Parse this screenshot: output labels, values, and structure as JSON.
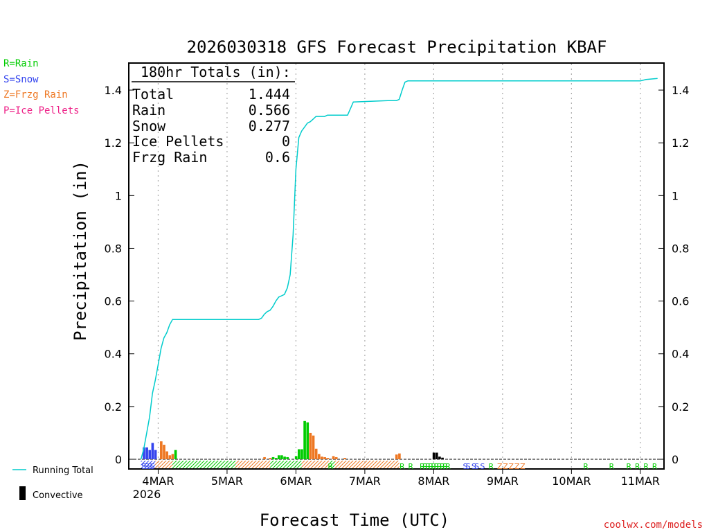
{
  "chart_data": {
    "type": "bar+line",
    "title": "2026030318 GFS Forecast Precipitation KBAF",
    "xlabel": "Forecast Time (UTC)",
    "ylabel": "Precipitation (in)",
    "ylim": [
      0,
      1.5
    ],
    "xlim_hours": [
      -4,
      182
    ],
    "yticks": [
      0,
      0.2,
      0.4,
      0.6,
      0.8,
      1,
      1.2,
      1.4
    ],
    "ytick_labels": [
      "0",
      "0.2",
      "0.4",
      "0.6",
      "0.8",
      "1",
      "1.2",
      "1.4"
    ],
    "xticks": [
      {
        "hour": 6,
        "label": "4MAR"
      },
      {
        "hour": 30,
        "label": "5MAR"
      },
      {
        "hour": 54,
        "label": "6MAR"
      },
      {
        "hour": 78,
        "label": "7MAR"
      },
      {
        "hour": 102,
        "label": "8MAR"
      },
      {
        "hour": 126,
        "label": "9MAR"
      },
      {
        "hour": 150,
        "label": "10MAR"
      },
      {
        "hour": 174,
        "label": "11MAR"
      }
    ],
    "first_tick_year": "2026",
    "legend": [
      {
        "label": "R=Rain",
        "color": "#00cc00"
      },
      {
        "label": "S=Snow",
        "color": "#3344ee"
      },
      {
        "label": "Z=Frzg Rain",
        "color": "#ee7722"
      },
      {
        "label": "P=Ice Pellets",
        "color": "#ee2288"
      }
    ],
    "line_legend": {
      "label": "Running Total",
      "color": "#00cccc"
    },
    "convective_legend": {
      "label": "Convective",
      "color": "#000000"
    },
    "totals_box": {
      "heading": "180hr Totals (in):",
      "rows": [
        {
          "label": "Total",
          "value": "1.444"
        },
        {
          "label": "Rain",
          "value": "0.566"
        },
        {
          "label": "Snow",
          "value": "0.277"
        },
        {
          "label": "Ice Pellets",
          "value": "0"
        },
        {
          "label": "Frzg Rain",
          "value": "0.6"
        }
      ]
    },
    "bars": [
      {
        "hour": 1,
        "value": 0.045,
        "type": "snow"
      },
      {
        "hour": 2,
        "value": 0.045,
        "type": "snow"
      },
      {
        "hour": 3,
        "value": 0.035,
        "type": "snow"
      },
      {
        "hour": 4,
        "value": 0.062,
        "type": "snow"
      },
      {
        "hour": 5,
        "value": 0.035,
        "type": "snow"
      },
      {
        "hour": 7,
        "value": 0.068,
        "type": "frzg"
      },
      {
        "hour": 8,
        "value": 0.055,
        "type": "frzg"
      },
      {
        "hour": 9,
        "value": 0.03,
        "type": "frzg"
      },
      {
        "hour": 10,
        "value": 0.015,
        "type": "frzg"
      },
      {
        "hour": 11,
        "value": 0.02,
        "type": "frzg"
      },
      {
        "hour": 12,
        "value": 0.035,
        "type": "rain"
      },
      {
        "hour": 43,
        "value": 0.008,
        "type": "frzg"
      },
      {
        "hour": 45,
        "value": 0.005,
        "type": "frzg"
      },
      {
        "hour": 46,
        "value": 0.008,
        "type": "rain"
      },
      {
        "hour": 47,
        "value": 0.005,
        "type": "rain"
      },
      {
        "hour": 48,
        "value": 0.015,
        "type": "rain"
      },
      {
        "hour": 49,
        "value": 0.015,
        "type": "rain"
      },
      {
        "hour": 50,
        "value": 0.01,
        "type": "rain"
      },
      {
        "hour": 51,
        "value": 0.008,
        "type": "rain"
      },
      {
        "hour": 54,
        "value": 0.012,
        "type": "rain"
      },
      {
        "hour": 55,
        "value": 0.038,
        "type": "rain"
      },
      {
        "hour": 56,
        "value": 0.038,
        "type": "rain"
      },
      {
        "hour": 57,
        "value": 0.145,
        "type": "rain"
      },
      {
        "hour": 58,
        "value": 0.14,
        "type": "rain"
      },
      {
        "hour": 59,
        "value": 0.1,
        "type": "frzg"
      },
      {
        "hour": 60,
        "value": 0.09,
        "type": "frzg"
      },
      {
        "hour": 61,
        "value": 0.04,
        "type": "frzg"
      },
      {
        "hour": 62,
        "value": 0.02,
        "type": "frzg"
      },
      {
        "hour": 63,
        "value": 0.01,
        "type": "frzg"
      },
      {
        "hour": 64,
        "value": 0.008,
        "type": "frzg"
      },
      {
        "hour": 65,
        "value": 0.005,
        "type": "frzg"
      },
      {
        "hour": 67,
        "value": 0.012,
        "type": "frzg"
      },
      {
        "hour": 68,
        "value": 0.008,
        "type": "frzg"
      },
      {
        "hour": 71,
        "value": 0.005,
        "type": "frzg"
      },
      {
        "hour": 89,
        "value": 0.018,
        "type": "frzg"
      },
      {
        "hour": 90,
        "value": 0.022,
        "type": "frzg"
      },
      {
        "hour": 102,
        "value": 0.025,
        "type": "convective"
      },
      {
        "hour": 103,
        "value": 0.025,
        "type": "convective"
      },
      {
        "hour": 104,
        "value": 0.01,
        "type": "convective"
      },
      {
        "hour": 105,
        "value": 0.006,
        "type": "convective"
      }
    ],
    "running_total": [
      {
        "hour": 0,
        "value": 0
      },
      {
        "hour": 1,
        "value": 0.04
      },
      {
        "hour": 2,
        "value": 0.1
      },
      {
        "hour": 3,
        "value": 0.16
      },
      {
        "hour": 4,
        "value": 0.25
      },
      {
        "hour": 5,
        "value": 0.3
      },
      {
        "hour": 6,
        "value": 0.36
      },
      {
        "hour": 7,
        "value": 0.42
      },
      {
        "hour": 8,
        "value": 0.46
      },
      {
        "hour": 9,
        "value": 0.48
      },
      {
        "hour": 10,
        "value": 0.51
      },
      {
        "hour": 11,
        "value": 0.53
      },
      {
        "hour": 41,
        "value": 0.53
      },
      {
        "hour": 42,
        "value": 0.535
      },
      {
        "hour": 43,
        "value": 0.55
      },
      {
        "hour": 44,
        "value": 0.56
      },
      {
        "hour": 45,
        "value": 0.565
      },
      {
        "hour": 46,
        "value": 0.58
      },
      {
        "hour": 47,
        "value": 0.6
      },
      {
        "hour": 48,
        "value": 0.615
      },
      {
        "hour": 49,
        "value": 0.62
      },
      {
        "hour": 50,
        "value": 0.625
      },
      {
        "hour": 51,
        "value": 0.65
      },
      {
        "hour": 52,
        "value": 0.7
      },
      {
        "hour": 53,
        "value": 0.85
      },
      {
        "hour": 54,
        "value": 1.1
      },
      {
        "hour": 55,
        "value": 1.22
      },
      {
        "hour": 56,
        "value": 1.245
      },
      {
        "hour": 57,
        "value": 1.26
      },
      {
        "hour": 58,
        "value": 1.275
      },
      {
        "hour": 59,
        "value": 1.28
      },
      {
        "hour": 60,
        "value": 1.29
      },
      {
        "hour": 61,
        "value": 1.3
      },
      {
        "hour": 64,
        "value": 1.3
      },
      {
        "hour": 65,
        "value": 1.305
      },
      {
        "hour": 72,
        "value": 1.305
      },
      {
        "hour": 73,
        "value": 1.33
      },
      {
        "hour": 74,
        "value": 1.355
      },
      {
        "hour": 86,
        "value": 1.36
      },
      {
        "hour": 89,
        "value": 1.36
      },
      {
        "hour": 90,
        "value": 1.365
      },
      {
        "hour": 91,
        "value": 1.4
      },
      {
        "hour": 92,
        "value": 1.43
      },
      {
        "hour": 93,
        "value": 1.435
      },
      {
        "hour": 174,
        "value": 1.435
      },
      {
        "hour": 176,
        "value": 1.44
      },
      {
        "hour": 180,
        "value": 1.444
      }
    ],
    "type_strip": [
      {
        "start": 0,
        "end": 5,
        "type": "snow"
      },
      {
        "start": 5,
        "end": 11,
        "type": "frzg"
      },
      {
        "start": 11,
        "end": 33,
        "type": "rain"
      },
      {
        "start": 33,
        "end": 45,
        "type": "frzg"
      },
      {
        "start": 45,
        "end": 56,
        "type": "rain"
      },
      {
        "start": 56,
        "end": 66,
        "type": "frzg"
      },
      {
        "start": 66,
        "end": 67.5,
        "type": "rain"
      },
      {
        "start": 67.5,
        "end": 90,
        "type": "frzg"
      }
    ],
    "type_markers": [
      {
        "hour": 1,
        "char": "S",
        "type": "snow"
      },
      {
        "hour": 2,
        "char": "S",
        "type": "snow"
      },
      {
        "hour": 3,
        "char": "S",
        "type": "snow"
      },
      {
        "hour": 4,
        "char": "S",
        "type": "snow"
      },
      {
        "hour": 66,
        "char": "R",
        "type": "rain"
      },
      {
        "hour": 91,
        "char": "R",
        "type": "rain"
      },
      {
        "hour": 94,
        "char": "R",
        "type": "rain"
      },
      {
        "hour": 98,
        "char": "R",
        "type": "rain"
      },
      {
        "hour": 99,
        "char": "R",
        "type": "rain"
      },
      {
        "hour": 100,
        "char": "R",
        "type": "rain"
      },
      {
        "hour": 101,
        "char": "R",
        "type": "rain"
      },
      {
        "hour": 102,
        "char": "R",
        "type": "rain"
      },
      {
        "hour": 103,
        "char": "R",
        "type": "rain"
      },
      {
        "hour": 104,
        "char": "R",
        "type": "rain"
      },
      {
        "hour": 105,
        "char": "R",
        "type": "rain"
      },
      {
        "hour": 106,
        "char": "R",
        "type": "rain"
      },
      {
        "hour": 107,
        "char": "R",
        "type": "rain"
      },
      {
        "hour": 113,
        "char": "S",
        "type": "snow"
      },
      {
        "hour": 114,
        "char": "S",
        "type": "snow"
      },
      {
        "hour": 116,
        "char": "S",
        "type": "snow"
      },
      {
        "hour": 117,
        "char": "S",
        "type": "snow"
      },
      {
        "hour": 119,
        "char": "S",
        "type": "snow"
      },
      {
        "hour": 122,
        "char": "R",
        "type": "rain"
      },
      {
        "hour": 125,
        "char": "Z",
        "type": "frzg"
      },
      {
        "hour": 127,
        "char": "Z",
        "type": "frzg"
      },
      {
        "hour": 129,
        "char": "Z",
        "type": "frzg"
      },
      {
        "hour": 131,
        "char": "Z",
        "type": "frzg"
      },
      {
        "hour": 133,
        "char": "Z",
        "type": "frzg"
      },
      {
        "hour": 155,
        "char": "R",
        "type": "rain"
      },
      {
        "hour": 164,
        "char": "R",
        "type": "rain"
      },
      {
        "hour": 170,
        "char": "R",
        "type": "rain"
      },
      {
        "hour": 173,
        "char": "R",
        "type": "rain"
      },
      {
        "hour": 176,
        "char": "R",
        "type": "rain"
      },
      {
        "hour": 179,
        "char": "R",
        "type": "rain"
      }
    ],
    "type_colors": {
      "rain": "#00cc00",
      "snow": "#3344ee",
      "frzg": "#ee7722",
      "ice": "#ee2288",
      "convective": "#000000"
    },
    "credit": "coolwx.com/models"
  }
}
